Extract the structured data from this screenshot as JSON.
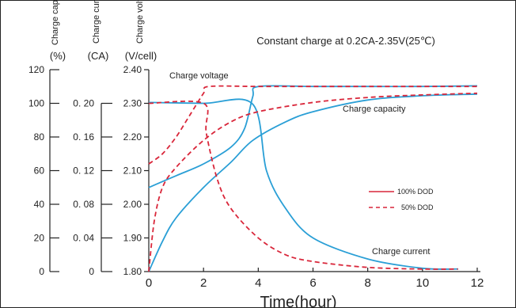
{
  "chart_data": {
    "type": "line",
    "title": "Constant charge at 0.2CA-2.35V(25℃)",
    "xlabel": "Time(hour)",
    "xlim": [
      0,
      12
    ],
    "x_ticks": [
      "0",
      "2",
      "4",
      "6",
      "8",
      "10",
      "12"
    ],
    "annotations": {
      "charge_voltage": "Charge voltage",
      "charge_capacity": "Charge  capacity",
      "charge_current": "Charge  current"
    },
    "axes": {
      "capacity": {
        "label_rotated": "Charge capacity",
        "unit": "(%)",
        "ylim": [
          0,
          120
        ],
        "ticks": [
          "0",
          "20",
          "40",
          "60",
          "80",
          "100",
          "120"
        ]
      },
      "current": {
        "label_rotated": "Charge current",
        "unit": "(CA)",
        "ylim": [
          0,
          0.24
        ],
        "ticks": [
          "0",
          "0. 04",
          "0. 08",
          "0. 12",
          "0. 16",
          "0. 20"
        ]
      },
      "voltage": {
        "label_rotated": "Charge voltage",
        "unit": "(V/cell)",
        "ylim": [
          1.8,
          2.4
        ],
        "ticks": [
          "1.80",
          "1.90",
          "2.00",
          "2.10",
          "2.20",
          "2.30",
          "2.40"
        ]
      }
    },
    "legend": {
      "position": "bottom-right",
      "entries": [
        {
          "label": "100% DOD",
          "style": "solid"
        },
        {
          "label": "50% DOD",
          "style": "dashed"
        }
      ]
    },
    "series": [
      {
        "quantity": "voltage",
        "dod": "100%",
        "axis": "voltage",
        "color": "#2a9fd6",
        "x": [
          0,
          1,
          2,
          3,
          3.5,
          3.8,
          4,
          6,
          8,
          10,
          12
        ],
        "y": [
          2.05,
          2.085,
          2.12,
          2.17,
          2.225,
          2.32,
          2.35,
          2.35,
          2.35,
          2.35,
          2.352
        ]
      },
      {
        "quantity": "capacity",
        "dod": "100%",
        "axis": "capacity",
        "color": "#2a9fd6",
        "x": [
          0,
          0.5,
          1,
          2,
          3,
          3.8,
          5,
          6,
          8,
          10,
          12
        ],
        "y": [
          0,
          18,
          32,
          50,
          65,
          78,
          89,
          95,
          102,
          104.5,
          105.5
        ]
      },
      {
        "quantity": "current",
        "dod": "100%",
        "axis": "current",
        "color": "#2a9fd6",
        "x": [
          0,
          2,
          3.8,
          4.3,
          5,
          6,
          8,
          10,
          11.3
        ],
        "y": [
          0.201,
          0.2,
          0.199,
          0.12,
          0.075,
          0.04,
          0.015,
          0.004,
          0.003
        ]
      },
      {
        "quantity": "voltage",
        "dod": "50%",
        "axis": "voltage",
        "color": "#d9263a",
        "x": [
          0,
          0.5,
          1,
          1.5,
          2,
          2.2,
          4,
          6,
          8,
          10,
          12
        ],
        "y": [
          2.12,
          2.15,
          2.2,
          2.265,
          2.33,
          2.35,
          2.35,
          2.35,
          2.35,
          2.35,
          2.35
        ]
      },
      {
        "quantity": "capacity",
        "dod": "50%",
        "axis": "capacity",
        "color": "#d9263a",
        "x": [
          0,
          0.2,
          0.5,
          1,
          2,
          3,
          4,
          6,
          8,
          10,
          12
        ],
        "y": [
          0,
          30,
          50,
          62,
          78,
          89,
          95,
          100.5,
          103.5,
          105,
          106
        ]
      },
      {
        "quantity": "current",
        "dod": "50%",
        "axis": "current",
        "color": "#d9263a",
        "x": [
          0,
          2,
          2.1,
          2.5,
          3,
          4,
          5,
          6,
          8,
          10,
          11.3
        ],
        "y": [
          0.2,
          0.2,
          0.165,
          0.11,
          0.075,
          0.04,
          0.02,
          0.012,
          0.005,
          0.003,
          0.003
        ]
      }
    ]
  }
}
